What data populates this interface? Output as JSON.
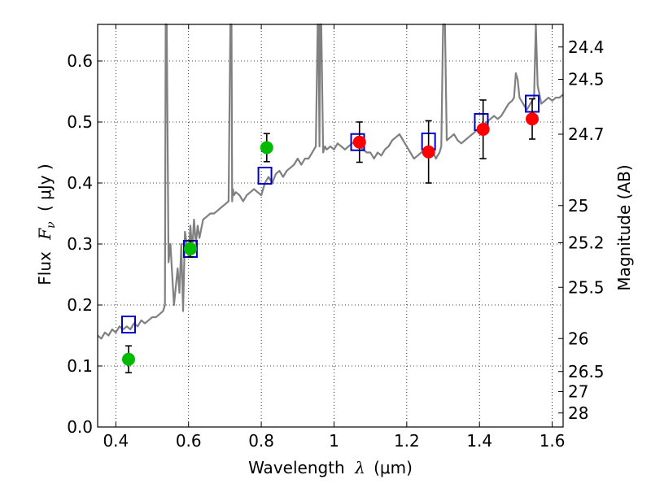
{
  "chart_data": {
    "type": "scatter",
    "xlabel_prefix": "Wavelength",
    "xlabel_symbol": "λ",
    "xlabel_unit": "(μm)",
    "ylabel_prefix": "Flux",
    "ylabel_symbol": "F",
    "ylabel_subscript": "ν",
    "ylabel_unit": "( μJy )",
    "y2label": "Magnitude (AB)",
    "xlim": [
      0.35,
      1.63
    ],
    "ylim": [
      0.0,
      0.66
    ],
    "grid": true,
    "x_ticks": [
      0.4,
      0.6,
      0.8,
      1.0,
      1.2,
      1.4,
      1.6
    ],
    "x_tick_labels": [
      "0.4",
      "0.6",
      "0.8",
      "1",
      "1.2",
      "1.4",
      "1.6"
    ],
    "y_ticks": [
      0.0,
      0.1,
      0.2,
      0.3,
      0.4,
      0.5,
      0.6
    ],
    "y_tick_labels": [
      "0.0",
      "0.1",
      "0.2",
      "0.3",
      "0.4",
      "0.5",
      "0.6"
    ],
    "mag_ticks": [
      {
        "label": "24.4",
        "flux": 0.623
      },
      {
        "label": "24.5",
        "flux": 0.57
      },
      {
        "label": "24.7",
        "flux": 0.48
      },
      {
        "label": "25",
        "flux": 0.363
      },
      {
        "label": "25.2",
        "flux": 0.302
      },
      {
        "label": "25.5",
        "flux": 0.229
      },
      {
        "label": "26",
        "flux": 0.145
      },
      {
        "label": "26.5",
        "flux": 0.091
      },
      {
        "label": "27",
        "flux": 0.058
      },
      {
        "label": "28",
        "flux": 0.023
      }
    ],
    "series": [
      {
        "name": "model-spectrum",
        "type": "line",
        "color": "#808080",
        "x": [
          0.35,
          0.36,
          0.37,
          0.38,
          0.39,
          0.4,
          0.41,
          0.42,
          0.43,
          0.44,
          0.45,
          0.46,
          0.47,
          0.48,
          0.49,
          0.5,
          0.51,
          0.52,
          0.53,
          0.535,
          0.537,
          0.54,
          0.545,
          0.55,
          0.56,
          0.57,
          0.575,
          0.58,
          0.585,
          0.59,
          0.6,
          0.605,
          0.61,
          0.615,
          0.62,
          0.625,
          0.63,
          0.64,
          0.65,
          0.66,
          0.67,
          0.68,
          0.69,
          0.7,
          0.71,
          0.715,
          0.718,
          0.72,
          0.722,
          0.725,
          0.73,
          0.74,
          0.75,
          0.76,
          0.77,
          0.78,
          0.79,
          0.8,
          0.81,
          0.82,
          0.83,
          0.84,
          0.85,
          0.86,
          0.87,
          0.88,
          0.89,
          0.9,
          0.91,
          0.92,
          0.93,
          0.94,
          0.95,
          0.955,
          0.957,
          0.96,
          0.962,
          0.965,
          0.97,
          0.975,
          0.98,
          0.99,
          1.0,
          1.01,
          1.02,
          1.03,
          1.04,
          1.05,
          1.06,
          1.07,
          1.08,
          1.09,
          1.1,
          1.11,
          1.12,
          1.13,
          1.14,
          1.15,
          1.16,
          1.17,
          1.18,
          1.19,
          1.2,
          1.21,
          1.22,
          1.23,
          1.24,
          1.25,
          1.26,
          1.27,
          1.28,
          1.29,
          1.295,
          1.3,
          1.305,
          1.31,
          1.32,
          1.33,
          1.34,
          1.35,
          1.36,
          1.37,
          1.38,
          1.39,
          1.4,
          1.41,
          1.42,
          1.43,
          1.44,
          1.45,
          1.46,
          1.47,
          1.48,
          1.49,
          1.495,
          1.5,
          1.505,
          1.51,
          1.52,
          1.53,
          1.54,
          1.545,
          1.55,
          1.555,
          1.56,
          1.57,
          1.58,
          1.59,
          1.6,
          1.61,
          1.62,
          1.63
        ],
        "y": [
          0.15,
          0.145,
          0.155,
          0.15,
          0.16,
          0.155,
          0.165,
          0.16,
          0.165,
          0.16,
          0.17,
          0.165,
          0.175,
          0.17,
          0.175,
          0.18,
          0.18,
          0.185,
          0.19,
          0.2,
          0.66,
          0.66,
          0.27,
          0.3,
          0.2,
          0.26,
          0.22,
          0.3,
          0.19,
          0.32,
          0.28,
          0.33,
          0.29,
          0.34,
          0.3,
          0.33,
          0.31,
          0.34,
          0.345,
          0.35,
          0.35,
          0.355,
          0.36,
          0.365,
          0.37,
          0.66,
          0.66,
          0.37,
          0.39,
          0.38,
          0.385,
          0.38,
          0.37,
          0.38,
          0.385,
          0.39,
          0.385,
          0.38,
          0.4,
          0.41,
          0.4,
          0.415,
          0.42,
          0.41,
          0.42,
          0.425,
          0.43,
          0.44,
          0.43,
          0.44,
          0.44,
          0.45,
          0.46,
          0.66,
          0.66,
          0.46,
          0.66,
          0.66,
          0.45,
          0.46,
          0.455,
          0.46,
          0.455,
          0.465,
          0.46,
          0.455,
          0.46,
          0.465,
          0.47,
          0.46,
          0.455,
          0.45,
          0.45,
          0.44,
          0.45,
          0.445,
          0.455,
          0.46,
          0.47,
          0.475,
          0.48,
          0.47,
          0.46,
          0.45,
          0.44,
          0.445,
          0.45,
          0.455,
          0.46,
          0.455,
          0.44,
          0.45,
          0.46,
          0.66,
          0.66,
          0.47,
          0.475,
          0.48,
          0.47,
          0.465,
          0.47,
          0.475,
          0.48,
          0.485,
          0.49,
          0.495,
          0.5,
          0.505,
          0.51,
          0.505,
          0.51,
          0.52,
          0.53,
          0.535,
          0.54,
          0.58,
          0.57,
          0.54,
          0.53,
          0.52,
          0.53,
          0.535,
          0.54,
          0.66,
          0.56,
          0.53,
          0.535,
          0.54,
          0.535,
          0.54,
          0.54,
          0.545
        ]
      },
      {
        "name": "model-photometry",
        "type": "scatter",
        "marker": "square-open",
        "color": "#0000cc",
        "x": [
          0.435,
          0.605,
          0.81,
          1.065,
          1.26,
          1.405,
          1.545
        ],
        "y": [
          0.168,
          0.292,
          0.412,
          0.467,
          0.468,
          0.5,
          0.53
        ]
      },
      {
        "name": "observed-optical",
        "type": "scatter",
        "marker": "circle",
        "color": "#00bb00",
        "x": [
          0.435,
          0.605,
          0.815
        ],
        "y": [
          0.111,
          0.292,
          0.458
        ],
        "yerr": [
          0.022,
          0.013,
          0.023
        ]
      },
      {
        "name": "observed-nir",
        "type": "scatter",
        "marker": "circle",
        "color": "#ff0000",
        "x": [
          1.07,
          1.26,
          1.41,
          1.545
        ],
        "y": [
          0.467,
          0.451,
          0.488,
          0.505
        ],
        "yerr": [
          0.033,
          0.051,
          0.048,
          0.033
        ]
      }
    ]
  }
}
